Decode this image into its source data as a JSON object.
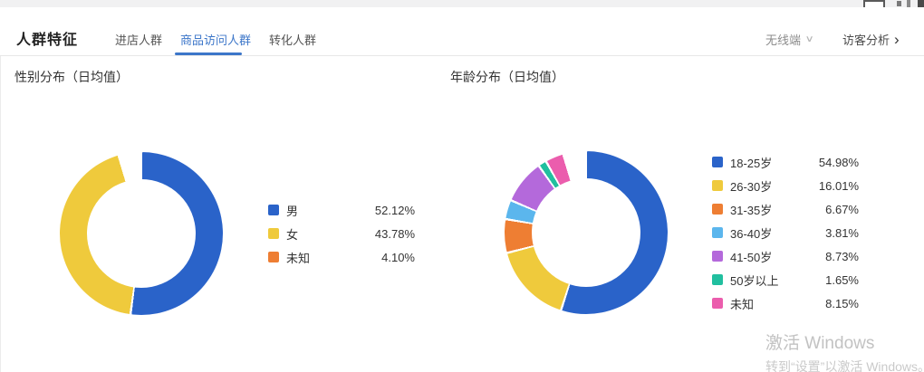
{
  "header": {
    "title": "人群特征",
    "tabs": [
      {
        "label": "进店人群",
        "active": false
      },
      {
        "label": "商品访问人群",
        "active": true
      },
      {
        "label": "转化人群",
        "active": false
      }
    ],
    "channel": {
      "label": "无线端"
    },
    "link": {
      "label": "访客分析"
    },
    "icons": {
      "chevron_down": "∨",
      "chevron_right": "›"
    }
  },
  "chart_data": [
    {
      "type": "pie",
      "title": "性别分布（日均值）",
      "hole": 0.67,
      "start_angle": "top",
      "direction": "clockwise",
      "legend_position": "right",
      "value_format": "percent",
      "slices": [
        {
          "label": "男",
          "value": 52.12,
          "color": "#2a63c9"
        },
        {
          "label": "女",
          "value": 43.78,
          "color": "#efca3c"
        },
        {
          "label": "未知",
          "value": 4.1,
          "color": "#ee7e33"
        }
      ]
    },
    {
      "type": "pie",
      "title": "年龄分布（日均值）",
      "hole": 0.67,
      "start_angle": "top",
      "direction": "clockwise",
      "legend_position": "right",
      "value_format": "percent",
      "slices": [
        {
          "label": "18-25岁",
          "value": 54.98,
          "color": "#2a63c9"
        },
        {
          "label": "26-30岁",
          "value": 16.01,
          "color": "#efca3c"
        },
        {
          "label": "31-35岁",
          "value": 6.67,
          "color": "#ee7e33"
        },
        {
          "label": "36-40岁",
          "value": 3.81,
          "color": "#5bb6ed"
        },
        {
          "label": "41-50岁",
          "value": 8.73,
          "color": "#b469db"
        },
        {
          "label": "50岁以上",
          "value": 1.65,
          "color": "#21bf9f"
        },
        {
          "label": "未知",
          "value": 8.15,
          "color": "#eb5dad"
        }
      ]
    }
  ],
  "watermark": {
    "line1": "激活 Windows",
    "line2": "转到“设置”以激活 Windows。"
  }
}
